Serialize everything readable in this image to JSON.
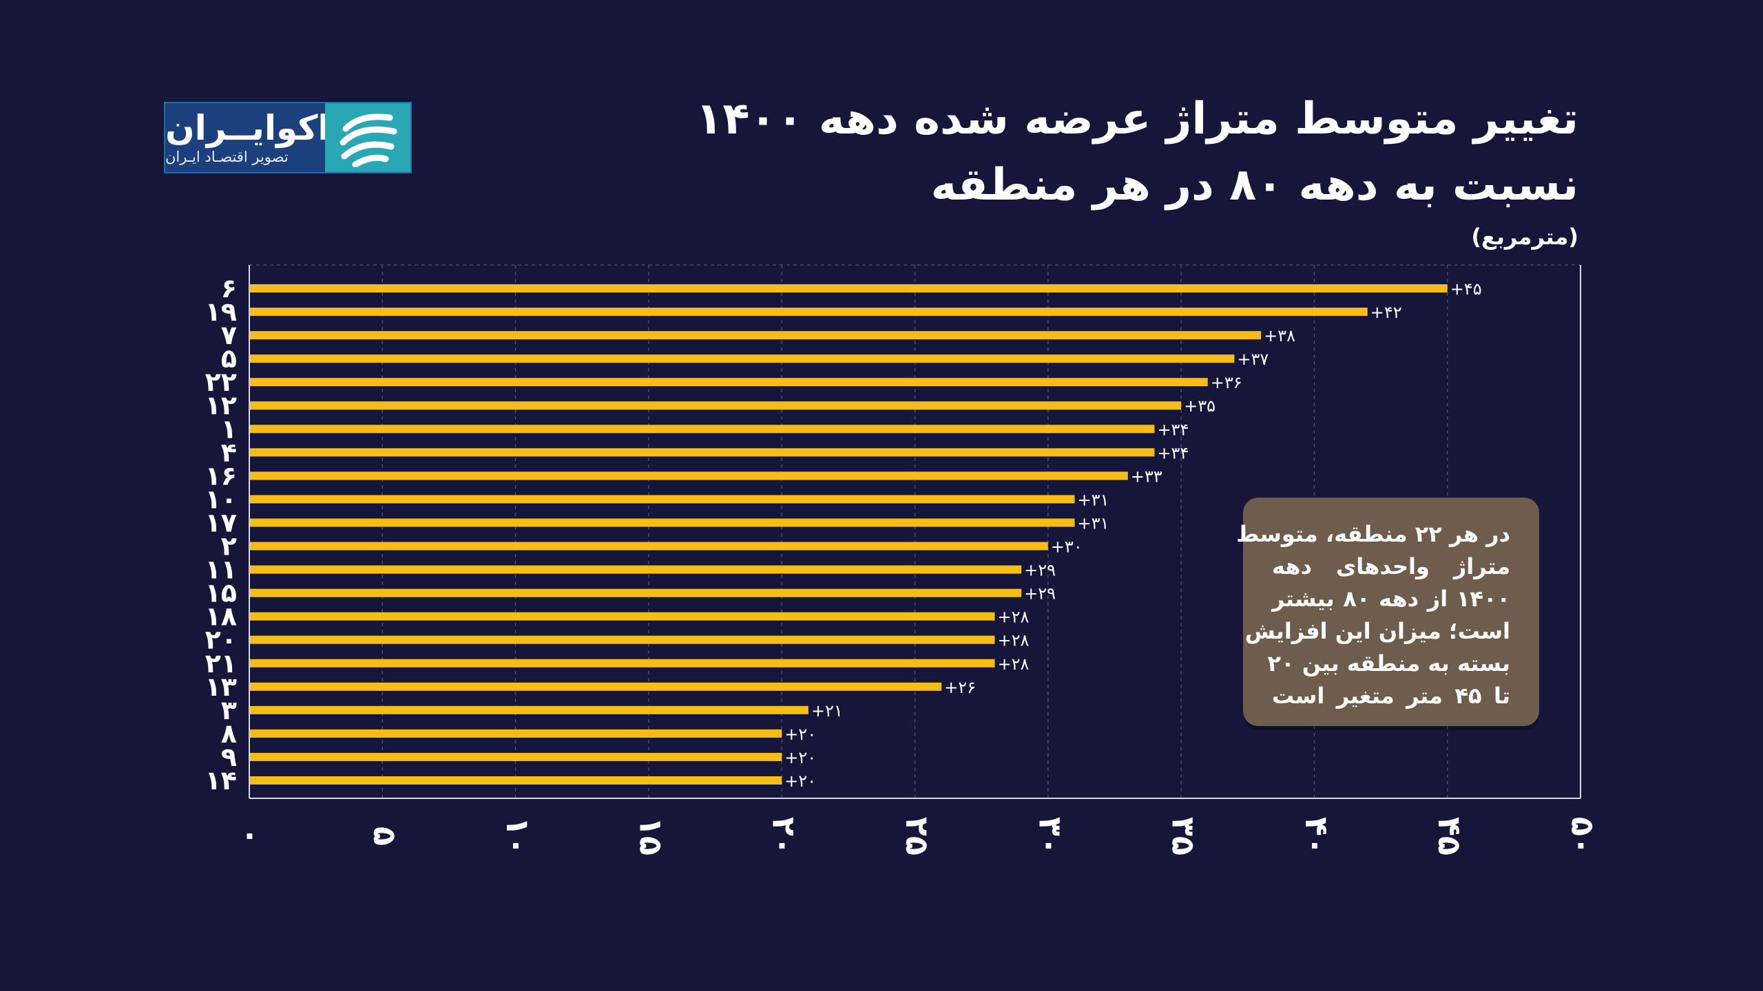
{
  "header": {
    "title_line1": "تغییر متوسط متراژ عرضه شده دهه ۱۴۰۰",
    "title_line2": "نسبت به دهه ۸۰ در هر منطقه",
    "unit": "(مترمربع)"
  },
  "logo": {
    "name": "اکوایــران",
    "tagline": "تصویر اقتصـاد ایـران",
    "icon": "ecoiran-logo-icon"
  },
  "callout": {
    "lines": [
      "در هر ۲۲ منطقه، متوسط",
      "متراژ واحدهای دهه",
      "۱۴۰۰ از دهه ۸۰ بیشتر",
      "است؛ میزان این افزایش",
      "بسته به منطقه بین ۲۰",
      "تا ۴۵ متر متغیر است"
    ]
  },
  "chart_data": {
    "type": "bar",
    "orientation": "horizontal",
    "categories": [
      "۶",
      "۱۹",
      "۷",
      "۵",
      "۲۲",
      "۱۲",
      "۱",
      "۴",
      "۱۶",
      "۱۰",
      "۱۷",
      "۲",
      "۱۱",
      "۱۵",
      "۱۸",
      "۲۰",
      "۲۱",
      "۱۳",
      "۳",
      "۸",
      "۹",
      "۱۴"
    ],
    "values": [
      45,
      42,
      38,
      37,
      36,
      35,
      34,
      34,
      33,
      31,
      31,
      30,
      29,
      29,
      28,
      28,
      28,
      26,
      21,
      20,
      20,
      20
    ],
    "value_labels": [
      "+۴۵",
      "+۴۲",
      "+۳۸",
      "+۳۷",
      "+۳۶",
      "+۳۵",
      "+۳۴",
      "+۳۴",
      "+۳۳",
      "+۳۱",
      "+۳۱",
      "+۳۰",
      "+۲۹",
      "+۲۹",
      "+۲۸",
      "+۲۸",
      "+۲۸",
      "+۲۶",
      "+۲۱",
      "+۲۰",
      "+۲۰",
      "+۲۰"
    ],
    "x_ticks": [
      0,
      5,
      10,
      15,
      20,
      25,
      30,
      35,
      40,
      45,
      50
    ],
    "x_tick_labels": [
      "۰",
      "۵",
      "۱۰",
      "۱۵",
      "۲۰",
      "۲۵",
      "۳۰",
      "۳۵",
      "۴۰",
      "۴۵",
      "۵۰"
    ],
    "xlim": [
      0,
      50
    ],
    "grid": true,
    "colors": {
      "bar": "#f7bd17",
      "grid": "#4a4a70",
      "axis": "#d9d9e6",
      "background": "#16163a"
    }
  }
}
